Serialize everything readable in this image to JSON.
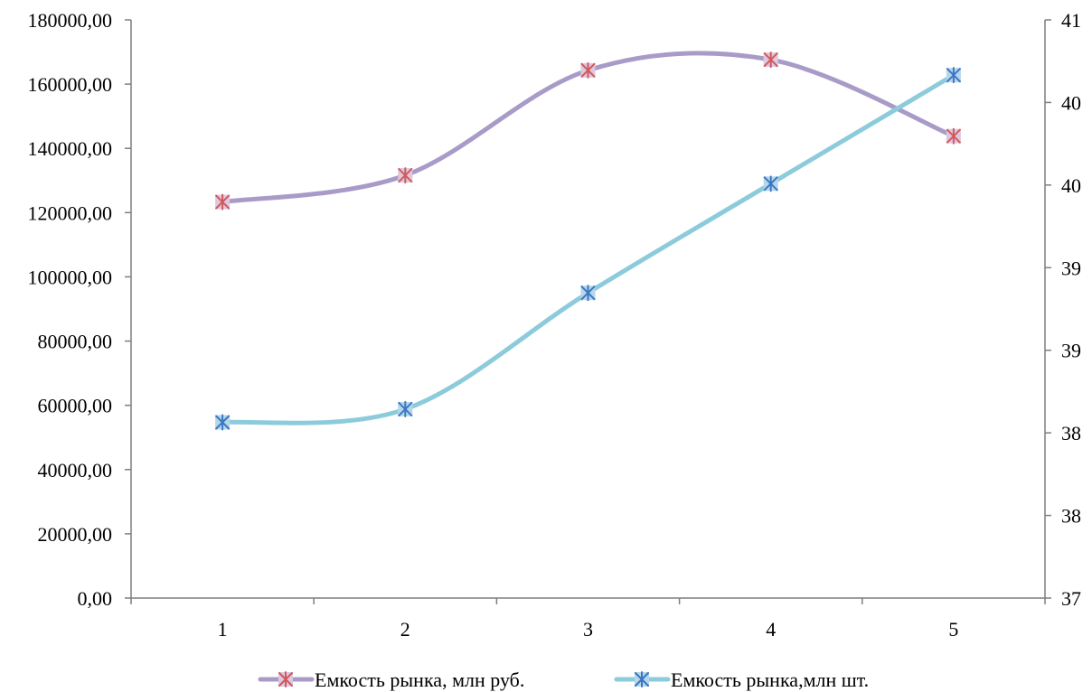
{
  "chart_data": {
    "type": "line",
    "smooth": true,
    "grid": false,
    "legend_position": "bottom",
    "x": [
      1,
      2,
      3,
      4,
      5
    ],
    "x_tick_labels": [
      "1",
      "2",
      "3",
      "4",
      "5"
    ],
    "y_left": {
      "ylim": [
        0,
        180000
      ],
      "ticks": [
        0,
        20000,
        40000,
        60000,
        80000,
        100000,
        120000,
        140000,
        160000,
        180000
      ],
      "tick_labels": [
        "0,00",
        "20000,00",
        "40000,00",
        "60000,00",
        "80000,00",
        "100000,00",
        "120000,00",
        "140000,00",
        "160000,00",
        "180000,00"
      ]
    },
    "y_right": {
      "tick_labels": [
        "37",
        "38",
        "38",
        "39",
        "39",
        "40",
        "40",
        "41"
      ]
    },
    "series": [
      {
        "name": "Емкость рынка, млн руб.",
        "axis": "left",
        "values": [
          123300,
          131600,
          164300,
          167600,
          143800
        ],
        "line_color": "#a99bc8",
        "marker_color": "#d05a5a",
        "marker_fill": "#dfc7df"
      },
      {
        "name": "Емкость рынка,млн шт.",
        "axis": "right",
        "values_as_left_scale": [
          54700,
          58800,
          95000,
          129000,
          162800
        ],
        "line_color": "#8ccbdb",
        "marker_color": "#3a78c4",
        "marker_fill": "#b7d6ea"
      }
    ]
  }
}
